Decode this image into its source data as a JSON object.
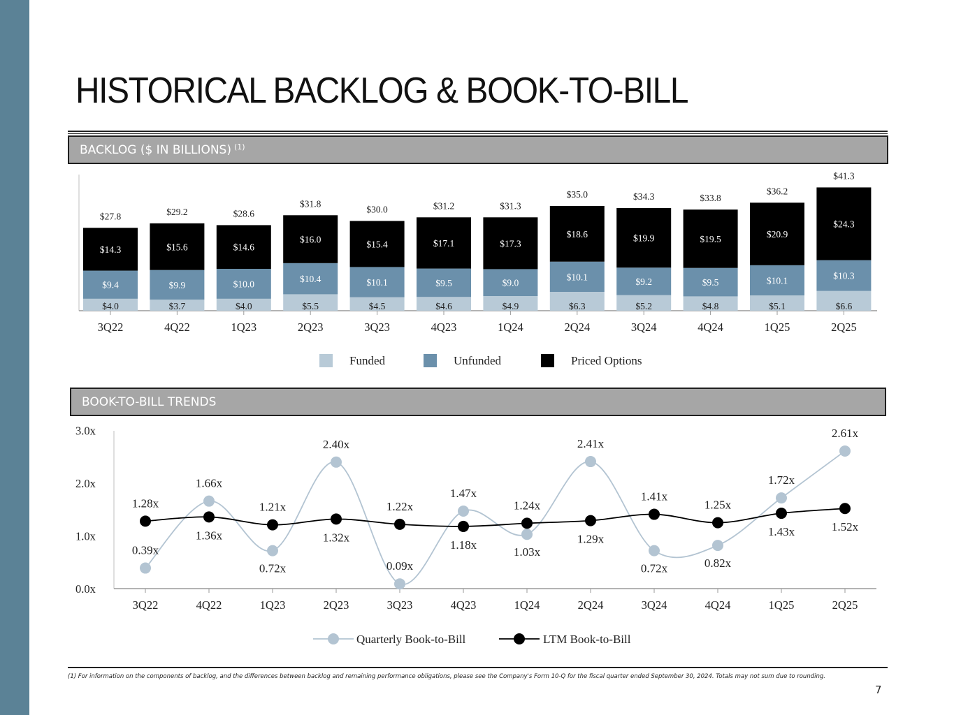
{
  "page": {
    "title": "HISTORICAL BACKLOG & BOOK-TO-BILL",
    "backlog_section_label": "BACKLOG ($ IN BILLIONS)",
    "backlog_section_note": "(1)",
    "btb_section_label": "BOOK-TO-BILL TRENDS",
    "footnote": "(1) For information on the components of backlog, and the differences between backlog and remaining performance obligations, please see the Company's Form 10-Q for the fiscal quarter ended September 30, 2024. Totals may not sum due to rounding.",
    "page_number": "7"
  },
  "colors": {
    "funded": "#b8cad7",
    "unfunded": "#6b90ab",
    "priced_options": "#000000",
    "quarterly_line": "#b3c4d2",
    "ltm_line": "#000000",
    "sidebar": "#5b8296"
  },
  "chart_data": [
    {
      "type": "bar",
      "stacked": true,
      "categories": [
        "3Q22",
        "4Q22",
        "1Q23",
        "2Q23",
        "3Q23",
        "4Q23",
        "1Q24",
        "2Q24",
        "3Q24",
        "4Q24",
        "1Q25",
        "2Q25"
      ],
      "series": [
        {
          "name": "Funded",
          "values": [
            4.0,
            3.7,
            4.0,
            5.5,
            4.5,
            4.6,
            4.9,
            6.3,
            5.2,
            4.8,
            5.1,
            6.6
          ],
          "labels": [
            "$4.0",
            "$3.7",
            "$4.0",
            "$5.5",
            "$4.5",
            "$4.6",
            "$4.9",
            "$6.3",
            "$5.2",
            "$4.8",
            "$5.1",
            "$6.6"
          ]
        },
        {
          "name": "Unfunded",
          "values": [
            9.4,
            9.9,
            10.0,
            10.4,
            10.1,
            9.5,
            9.0,
            10.1,
            9.2,
            9.5,
            10.1,
            10.3
          ],
          "labels": [
            "$9.4",
            "$9.9",
            "$10.0",
            "$10.4",
            "$10.1",
            "$9.5",
            "$9.0",
            "$10.1",
            "$9.2",
            "$9.5",
            "$10.1",
            "$10.3"
          ]
        },
        {
          "name": "Priced Options",
          "values": [
            14.3,
            15.6,
            14.6,
            16.0,
            15.4,
            17.1,
            17.3,
            18.6,
            19.9,
            19.5,
            20.9,
            24.3
          ],
          "labels": [
            "$14.3",
            "$15.6",
            "$14.6",
            "$16.0",
            "$15.4",
            "$17.1",
            "$17.3",
            "$18.6",
            "$19.9",
            "$19.5",
            "$20.9",
            "$24.3"
          ]
        }
      ],
      "totals": [
        27.8,
        29.2,
        28.6,
        31.8,
        30.0,
        31.2,
        31.3,
        35.0,
        34.3,
        33.8,
        36.2,
        41.3
      ],
      "total_labels": [
        "$27.8",
        "$29.2",
        "$28.6",
        "$31.8",
        "$30.0",
        "$31.2",
        "$31.3",
        "$35.0",
        "$34.3",
        "$33.8",
        "$36.2",
        "$41.3"
      ],
      "title": "BACKLOG ($ IN BILLIONS)",
      "xlabel": "",
      "ylabel": "",
      "ylim": [
        0,
        42
      ],
      "legend": [
        "Funded",
        "Unfunded",
        "Priced Options"
      ],
      "legend_position": "bottom-center",
      "grid": false
    },
    {
      "type": "line",
      "categories": [
        "3Q22",
        "4Q22",
        "1Q23",
        "2Q23",
        "3Q23",
        "4Q23",
        "1Q24",
        "2Q24",
        "3Q24",
        "4Q24",
        "1Q25",
        "2Q25"
      ],
      "series": [
        {
          "name": "Quarterly Book-to-Bill",
          "values": [
            0.39,
            1.66,
            0.72,
            2.4,
            0.09,
            1.47,
            1.03,
            2.41,
            0.72,
            0.82,
            1.72,
            2.61
          ],
          "labels": [
            "0.39x",
            "1.66x",
            "0.72x",
            "2.40x",
            "0.09x",
            "1.47x",
            "1.03x",
            "2.41x",
            "0.72x",
            "0.82x",
            "1.72x",
            "2.61x"
          ]
        },
        {
          "name": "LTM Book-to-Bill",
          "values": [
            1.28,
            1.36,
            1.21,
            1.32,
            1.22,
            1.18,
            1.24,
            1.29,
            1.41,
            1.25,
            1.43,
            1.52
          ],
          "labels": [
            "1.28x",
            "1.36x",
            "1.21x",
            "1.32x",
            "1.22x",
            "1.18x",
            "1.24x",
            "1.29x",
            "1.41x",
            "1.25x",
            "1.43x",
            "1.52x"
          ]
        }
      ],
      "yticks": [
        "0.0x",
        "1.0x",
        "2.0x",
        "3.0x"
      ],
      "ylim": [
        0,
        3
      ],
      "title": "BOOK-TO-BILL TRENDS",
      "xlabel": "",
      "ylabel": "",
      "legend_position": "bottom-center",
      "grid": false
    }
  ]
}
